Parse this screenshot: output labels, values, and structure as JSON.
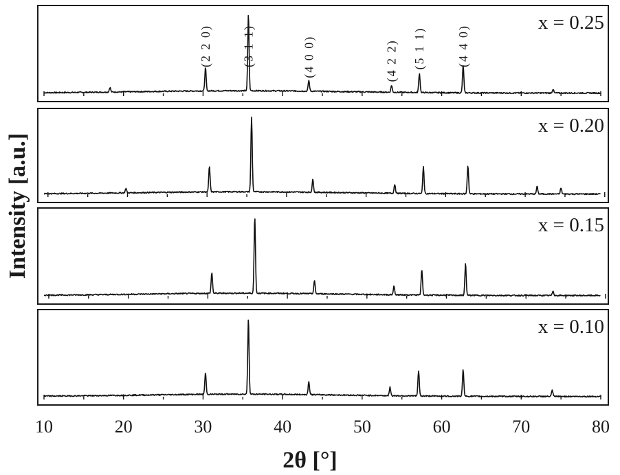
{
  "chart_data": {
    "type": "line",
    "xlabel": "2θ [°]",
    "ylabel": "Intensity [a.u.]",
    "xlim": [
      10,
      80
    ],
    "x_ticks": [
      10,
      20,
      30,
      40,
      50,
      60,
      70,
      80
    ],
    "grid": false,
    "legend": "none",
    "panels": [
      {
        "label": "x = 0.25",
        "baseline_shift": 0.0,
        "peaks": [
          {
            "x": 18.3,
            "y": 6
          },
          {
            "x": 30.3,
            "y": 30
          },
          {
            "x": 35.7,
            "y": 100
          },
          {
            "x": 43.3,
            "y": 14
          },
          {
            "x": 53.7,
            "y": 9
          },
          {
            "x": 57.2,
            "y": 25
          },
          {
            "x": 62.7,
            "y": 36
          },
          {
            "x": 74.0,
            "y": 5
          }
        ],
        "peak_labels": [
          {
            "text": "(2 2 0)",
            "x": 30.3
          },
          {
            "text": "(3 1 1)",
            "x": 35.7
          },
          {
            "text": "(4 0 0)",
            "x": 43.3
          },
          {
            "text": "(4 2 2)",
            "x": 53.7
          },
          {
            "text": "(5 1 1)",
            "x": 57.2
          },
          {
            "text": "(4 4 0)",
            "x": 62.7
          }
        ]
      },
      {
        "label": "x = 0.20",
        "baseline_shift": 0.5,
        "peaks": [
          {
            "x": 20.3,
            "y": 6
          },
          {
            "x": 30.8,
            "y": 34
          },
          {
            "x": 36.1,
            "y": 100
          },
          {
            "x": 43.8,
            "y": 17
          },
          {
            "x": 54.1,
            "y": 12
          },
          {
            "x": 57.7,
            "y": 36
          },
          {
            "x": 63.3,
            "y": 38
          },
          {
            "x": 72.0,
            "y": 10
          },
          {
            "x": 75.0,
            "y": 8
          }
        ],
        "peak_labels": []
      },
      {
        "label": "x = 0.15",
        "baseline_shift": 0.6,
        "peaks": [
          {
            "x": 31.1,
            "y": 27
          },
          {
            "x": 36.5,
            "y": 100
          },
          {
            "x": 44.0,
            "y": 17
          },
          {
            "x": 54.0,
            "y": 11
          },
          {
            "x": 57.5,
            "y": 33
          },
          {
            "x": 63.0,
            "y": 42
          },
          {
            "x": 74.0,
            "y": 6
          }
        ],
        "peak_labels": []
      },
      {
        "label": "x = 0.10",
        "baseline_shift": 0.0,
        "peaks": [
          {
            "x": 30.3,
            "y": 28
          },
          {
            "x": 35.7,
            "y": 100
          },
          {
            "x": 43.3,
            "y": 17
          },
          {
            "x": 53.5,
            "y": 11
          },
          {
            "x": 57.1,
            "y": 33
          },
          {
            "x": 62.7,
            "y": 35
          },
          {
            "x": 73.9,
            "y": 8
          }
        ],
        "peak_labels": []
      }
    ]
  }
}
